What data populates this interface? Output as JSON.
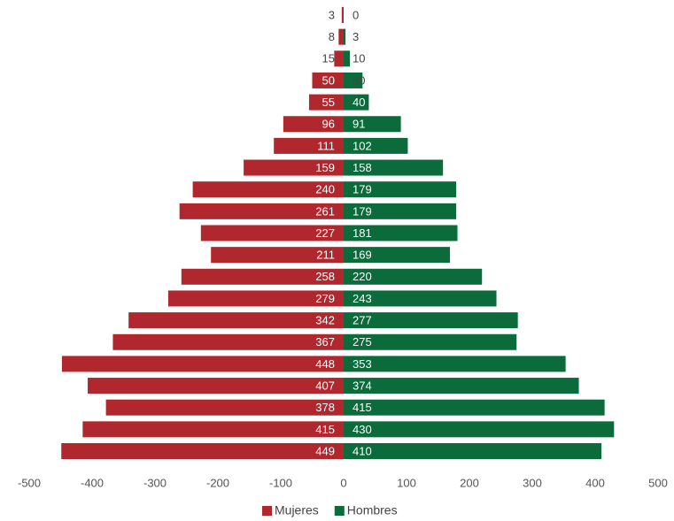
{
  "chart_data": {
    "type": "pyramid",
    "orientation": "horizontal",
    "series": [
      {
        "name": "Mujeres",
        "color": "#b0272d",
        "values": [
          -3,
          -8,
          -15,
          -50,
          -55,
          -96,
          -111,
          -159,
          -240,
          -261,
          -227,
          -211,
          -258,
          -279,
          -342,
          -367,
          -448,
          -407,
          -378,
          -415,
          -449
        ],
        "value_labels": [
          "3",
          "8",
          "15",
          "50",
          "55",
          "96",
          "111",
          "159",
          "240",
          "261",
          "227",
          "211",
          "258",
          "279",
          "342",
          "367",
          "448",
          "407",
          "378",
          "415",
          "449"
        ]
      },
      {
        "name": "Hombres",
        "color": "#0b6b3a",
        "values": [
          0,
          3,
          10,
          30,
          40,
          91,
          102,
          158,
          179,
          179,
          181,
          169,
          220,
          243,
          277,
          275,
          353,
          374,
          415,
          430,
          410
        ]
      }
    ],
    "xlim": [
      -500,
      500
    ],
    "xticks": [
      -500,
      -400,
      -300,
      -200,
      -100,
      0,
      100,
      200,
      300,
      400,
      500
    ],
    "grid": false,
    "legend": "bottom"
  }
}
